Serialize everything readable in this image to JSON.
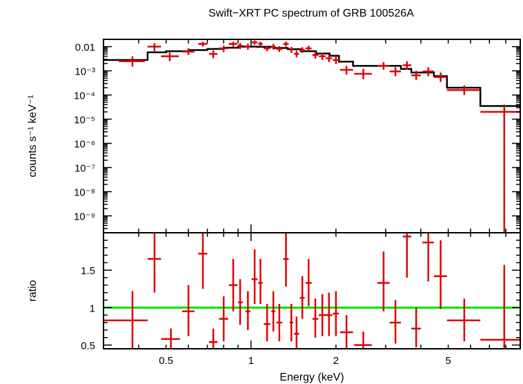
{
  "chart_data": [
    {
      "type": "scatter",
      "title": "Swift−XRT PC spectrum of GRB 100526A",
      "ylabel": "counts s⁻¹ keV⁻¹",
      "x_scale": "log",
      "y_scale": "log",
      "xlim": [
        0.3,
        9.0
      ],
      "ylim": [
        2e-10,
        0.02
      ],
      "y_tick_labels": [
        "0.01",
        "10⁻³",
        "10⁻⁴",
        "10⁻⁵",
        "10⁻⁶",
        "10⁻⁷",
        "10⁻⁸",
        "10⁻⁹"
      ],
      "y_tick_values": [
        0.01,
        0.001,
        0.0001,
        1e-05,
        1e-06,
        1e-07,
        1e-08,
        1e-09
      ],
      "series": [
        {
          "color": "#e00000",
          "points": [
            {
              "x": 0.38,
              "xlo": 0.34,
              "xhi": 0.42,
              "y": 0.0025,
              "ylo": 0.0015,
              "yhi": 0.004
            },
            {
              "x": 0.455,
              "xlo": 0.43,
              "xhi": 0.48,
              "y": 0.01,
              "ylo": 0.0065,
              "yhi": 0.014
            },
            {
              "x": 0.515,
              "xlo": 0.48,
              "xhi": 0.555,
              "y": 0.004,
              "ylo": 0.0025,
              "yhi": 0.0058
            },
            {
              "x": 0.6,
              "xlo": 0.57,
              "xhi": 0.63,
              "y": 0.0062,
              "ylo": 0.0045,
              "yhi": 0.0085
            },
            {
              "x": 0.675,
              "xlo": 0.65,
              "xhi": 0.7,
              "y": 0.013,
              "ylo": 0.01,
              "yhi": 0.016
            },
            {
              "x": 0.735,
              "xlo": 0.71,
              "xhi": 0.76,
              "y": 0.005,
              "ylo": 0.0033,
              "yhi": 0.007
            },
            {
              "x": 0.8,
              "xlo": 0.77,
              "xhi": 0.83,
              "y": 0.0085,
              "ylo": 0.006,
              "yhi": 0.011
            },
            {
              "x": 0.865,
              "xlo": 0.835,
              "xhi": 0.895,
              "y": 0.013,
              "ylo": 0.01,
              "yhi": 0.016
            },
            {
              "x": 0.915,
              "xlo": 0.9,
              "xhi": 0.935,
              "y": 0.011,
              "ylo": 0.008,
              "yhi": 0.014
            },
            {
              "x": 0.975,
              "xlo": 0.955,
              "xhi": 0.995,
              "y": 0.01,
              "ylo": 0.0075,
              "yhi": 0.013
            },
            {
              "x": 1.03,
              "xlo": 1.005,
              "xhi": 1.055,
              "y": 0.015,
              "ylo": 0.012,
              "yhi": 0.018
            },
            {
              "x": 1.08,
              "xlo": 1.06,
              "xhi": 1.1,
              "y": 0.013,
              "ylo": 0.01,
              "yhi": 0.016
            },
            {
              "x": 1.14,
              "xlo": 1.11,
              "xhi": 1.17,
              "y": 0.0085,
              "ylo": 0.0065,
              "yhi": 0.011
            },
            {
              "x": 1.2,
              "xlo": 1.18,
              "xhi": 1.22,
              "y": 0.01,
              "ylo": 0.0075,
              "yhi": 0.013
            },
            {
              "x": 1.26,
              "xlo": 1.23,
              "xhi": 1.29,
              "y": 0.008,
              "ylo": 0.006,
              "yhi": 0.0105
            },
            {
              "x": 1.33,
              "xlo": 1.3,
              "xhi": 1.36,
              "y": 0.013,
              "ylo": 0.01,
              "yhi": 0.016
            },
            {
              "x": 1.39,
              "xlo": 1.37,
              "xhi": 1.41,
              "y": 0.0075,
              "ylo": 0.0055,
              "yhi": 0.0098
            },
            {
              "x": 1.45,
              "xlo": 1.42,
              "xhi": 1.48,
              "y": 0.005,
              "ylo": 0.0036,
              "yhi": 0.0068
            },
            {
              "x": 1.52,
              "xlo": 1.49,
              "xhi": 1.55,
              "y": 0.0072,
              "ylo": 0.0055,
              "yhi": 0.0095
            },
            {
              "x": 1.6,
              "xlo": 1.56,
              "xhi": 1.64,
              "y": 0.0085,
              "ylo": 0.0065,
              "yhi": 0.011
            },
            {
              "x": 1.69,
              "xlo": 1.65,
              "xhi": 1.73,
              "y": 0.0045,
              "ylo": 0.0032,
              "yhi": 0.0062
            },
            {
              "x": 1.79,
              "xlo": 1.74,
              "xhi": 1.84,
              "y": 0.004,
              "ylo": 0.0028,
              "yhi": 0.0055
            },
            {
              "x": 1.89,
              "xlo": 1.84,
              "xhi": 1.94,
              "y": 0.0033,
              "ylo": 0.0023,
              "yhi": 0.0046
            },
            {
              "x": 2.0,
              "xlo": 1.95,
              "xhi": 2.05,
              "y": 0.0028,
              "ylo": 0.0019,
              "yhi": 0.004
            },
            {
              "x": 2.18,
              "xlo": 2.07,
              "xhi": 2.3,
              "y": 0.0011,
              "ylo": 0.0007,
              "yhi": 0.0016
            },
            {
              "x": 2.5,
              "xlo": 2.32,
              "xhi": 2.68,
              "y": 0.00075,
              "ylo": 0.00045,
              "yhi": 0.0012
            },
            {
              "x": 2.95,
              "xlo": 2.8,
              "xhi": 3.1,
              "y": 0.0016,
              "ylo": 0.0011,
              "yhi": 0.0023
            },
            {
              "x": 3.25,
              "xlo": 3.1,
              "xhi": 3.4,
              "y": 0.00095,
              "ylo": 0.0006,
              "yhi": 0.0014
            },
            {
              "x": 3.57,
              "xlo": 3.45,
              "xhi": 3.7,
              "y": 0.0017,
              "ylo": 0.0011,
              "yhi": 0.0025
            },
            {
              "x": 3.85,
              "xlo": 3.7,
              "xhi": 4.0,
              "y": 0.00065,
              "ylo": 0.00042,
              "yhi": 0.001
            },
            {
              "x": 4.25,
              "xlo": 4.05,
              "xhi": 4.45,
              "y": 0.00095,
              "ylo": 0.0006,
              "yhi": 0.0014
            },
            {
              "x": 4.7,
              "xlo": 4.45,
              "xhi": 4.95,
              "y": 0.00055,
              "ylo": 0.00035,
              "yhi": 0.00085
            },
            {
              "x": 5.7,
              "xlo": 4.95,
              "xhi": 6.5,
              "y": 0.00016,
              "ylo": 0.0001,
              "yhi": 0.00025
            },
            {
              "x": 7.9,
              "xlo": 6.5,
              "xhi": 9.0,
              "y": 2e-05,
              "ylo": 2e-10,
              "yhi": 4e-05
            }
          ]
        }
      ],
      "model_steps": [
        {
          "x1": 0.3,
          "x2": 0.43,
          "y": 0.0028
        },
        {
          "x1": 0.43,
          "x2": 0.5,
          "y": 0.0058
        },
        {
          "x1": 0.5,
          "x2": 0.6,
          "y": 0.0065
        },
        {
          "x1": 0.6,
          "x2": 0.7,
          "y": 0.0072
        },
        {
          "x1": 0.7,
          "x2": 0.8,
          "y": 0.008
        },
        {
          "x1": 0.8,
          "x2": 0.9,
          "y": 0.009
        },
        {
          "x1": 0.9,
          "x2": 1.05,
          "y": 0.01
        },
        {
          "x1": 1.05,
          "x2": 1.2,
          "y": 0.0098
        },
        {
          "x1": 1.2,
          "x2": 1.35,
          "y": 0.0088
        },
        {
          "x1": 1.35,
          "x2": 1.5,
          "y": 0.0078
        },
        {
          "x1": 1.5,
          "x2": 1.7,
          "y": 0.0065
        },
        {
          "x1": 1.7,
          "x2": 1.9,
          "y": 0.0052
        },
        {
          "x1": 1.9,
          "x2": 2.05,
          "y": 0.0042
        },
        {
          "x1": 2.05,
          "x2": 2.3,
          "y": 0.0024
        },
        {
          "x1": 2.3,
          "x2": 3.4,
          "y": 0.0016
        },
        {
          "x1": 3.4,
          "x2": 3.7,
          "y": 0.0012
        },
        {
          "x1": 3.7,
          "x2": 4.45,
          "y": 0.00085
        },
        {
          "x1": 4.45,
          "x2": 4.95,
          "y": 0.0006
        },
        {
          "x1": 4.95,
          "x2": 6.5,
          "y": 0.0002
        },
        {
          "x1": 6.5,
          "x2": 9.0,
          "y": 3.5e-05
        }
      ]
    },
    {
      "type": "scatter",
      "ylabel": "ratio",
      "xlabel": "Energy (keV)",
      "x_scale": "log",
      "xlim": [
        0.3,
        9.0
      ],
      "ylim": [
        0.45,
        2.0
      ],
      "x_tick_labels": [
        "0.5",
        "1",
        "2",
        "5"
      ],
      "x_tick_values": [
        0.5,
        1,
        2,
        5
      ],
      "y_tick_labels": [
        "0.5",
        "1",
        "1.5"
      ],
      "y_tick_values": [
        0.5,
        1,
        1.5
      ],
      "reference_line": {
        "y": 1,
        "color": "#00e000"
      },
      "series": [
        {
          "color": "#e00000",
          "points": [
            {
              "x": 0.38,
              "xlo": 0.3,
              "xhi": 0.43,
              "y": 0.83,
              "ylo": 0.45,
              "yhi": 1.22
            },
            {
              "x": 0.455,
              "xlo": 0.43,
              "xhi": 0.48,
              "y": 1.65,
              "ylo": 1.2,
              "yhi": 2.0
            },
            {
              "x": 0.52,
              "xlo": 0.48,
              "xhi": 0.56,
              "y": 0.58,
              "ylo": 0.45,
              "yhi": 0.72
            },
            {
              "x": 0.6,
              "xlo": 0.57,
              "xhi": 0.63,
              "y": 0.95,
              "ylo": 0.62,
              "yhi": 1.3
            },
            {
              "x": 0.675,
              "xlo": 0.65,
              "xhi": 0.7,
              "y": 1.72,
              "ylo": 1.25,
              "yhi": 2.0
            },
            {
              "x": 0.735,
              "xlo": 0.71,
              "xhi": 0.76,
              "y": 0.54,
              "ylo": 0.45,
              "yhi": 0.72
            },
            {
              "x": 0.8,
              "xlo": 0.77,
              "xhi": 0.83,
              "y": 0.85,
              "ylo": 0.55,
              "yhi": 1.15
            },
            {
              "x": 0.865,
              "xlo": 0.835,
              "xhi": 0.895,
              "y": 1.3,
              "ylo": 0.95,
              "yhi": 1.65
            },
            {
              "x": 0.915,
              "xlo": 0.9,
              "xhi": 0.935,
              "y": 1.07,
              "ylo": 0.77,
              "yhi": 1.38
            },
            {
              "x": 0.975,
              "xlo": 0.955,
              "xhi": 0.995,
              "y": 0.95,
              "ylo": 0.7,
              "yhi": 1.22
            },
            {
              "x": 1.03,
              "xlo": 1.005,
              "xhi": 1.055,
              "y": 1.38,
              "ylo": 1.05,
              "yhi": 1.78
            },
            {
              "x": 1.08,
              "xlo": 1.06,
              "xhi": 1.1,
              "y": 1.33,
              "ylo": 1.05,
              "yhi": 1.65
            },
            {
              "x": 1.14,
              "xlo": 1.11,
              "xhi": 1.17,
              "y": 0.78,
              "ylo": 0.55,
              "yhi": 1.05
            },
            {
              "x": 1.2,
              "xlo": 1.18,
              "xhi": 1.22,
              "y": 0.95,
              "ylo": 0.68,
              "yhi": 1.22
            },
            {
              "x": 1.26,
              "xlo": 1.23,
              "xhi": 1.29,
              "y": 0.8,
              "ylo": 0.55,
              "yhi": 1.05
            },
            {
              "x": 1.33,
              "xlo": 1.3,
              "xhi": 1.36,
              "y": 1.65,
              "ylo": 1.28,
              "yhi": 2.0
            },
            {
              "x": 1.39,
              "xlo": 1.37,
              "xhi": 1.41,
              "y": 0.8,
              "ylo": 0.55,
              "yhi": 1.05
            },
            {
              "x": 1.45,
              "xlo": 1.42,
              "xhi": 1.48,
              "y": 0.65,
              "ylo": 0.45,
              "yhi": 0.88
            },
            {
              "x": 1.52,
              "xlo": 1.49,
              "xhi": 1.55,
              "y": 1.13,
              "ylo": 0.85,
              "yhi": 1.42
            },
            {
              "x": 1.6,
              "xlo": 1.56,
              "xhi": 1.64,
              "y": 1.33,
              "ylo": 1.02,
              "yhi": 1.65
            },
            {
              "x": 1.69,
              "xlo": 1.65,
              "xhi": 1.73,
              "y": 0.85,
              "ylo": 0.6,
              "yhi": 1.12
            },
            {
              "x": 1.79,
              "xlo": 1.74,
              "xhi": 1.84,
              "y": 0.9,
              "ylo": 0.62,
              "yhi": 1.18
            },
            {
              "x": 1.89,
              "xlo": 1.84,
              "xhi": 1.94,
              "y": 0.9,
              "ylo": 0.62,
              "yhi": 1.2
            },
            {
              "x": 2.0,
              "xlo": 1.95,
              "xhi": 2.05,
              "y": 0.92,
              "ylo": 0.62,
              "yhi": 1.22
            },
            {
              "x": 2.18,
              "xlo": 2.07,
              "xhi": 2.3,
              "y": 0.67,
              "ylo": 0.45,
              "yhi": 0.9
            },
            {
              "x": 2.5,
              "xlo": 2.32,
              "xhi": 2.68,
              "y": 0.5,
              "ylo": 0.45,
              "yhi": 0.68
            },
            {
              "x": 2.95,
              "xlo": 2.8,
              "xhi": 3.1,
              "y": 1.33,
              "ylo": 0.95,
              "yhi": 1.75
            },
            {
              "x": 3.25,
              "xlo": 3.1,
              "xhi": 3.4,
              "y": 0.8,
              "ylo": 0.52,
              "yhi": 1.1
            },
            {
              "x": 3.57,
              "xlo": 3.45,
              "xhi": 3.7,
              "y": 1.95,
              "ylo": 1.4,
              "yhi": 2.0
            },
            {
              "x": 3.85,
              "xlo": 3.7,
              "xhi": 4.0,
              "y": 0.72,
              "ylo": 0.47,
              "yhi": 1.0
            },
            {
              "x": 4.25,
              "xlo": 4.05,
              "xhi": 4.45,
              "y": 1.87,
              "ylo": 1.35,
              "yhi": 2.0
            },
            {
              "x": 4.7,
              "xlo": 4.45,
              "xhi": 4.95,
              "y": 1.42,
              "ylo": 0.98,
              "yhi": 1.9
            },
            {
              "x": 5.7,
              "xlo": 4.95,
              "xhi": 6.5,
              "y": 0.83,
              "ylo": 0.55,
              "yhi": 1.12
            },
            {
              "x": 7.9,
              "xlo": 6.5,
              "xhi": 9.0,
              "y": 0.57,
              "ylo": 0.45,
              "yhi": 1.57
            }
          ]
        }
      ]
    }
  ]
}
